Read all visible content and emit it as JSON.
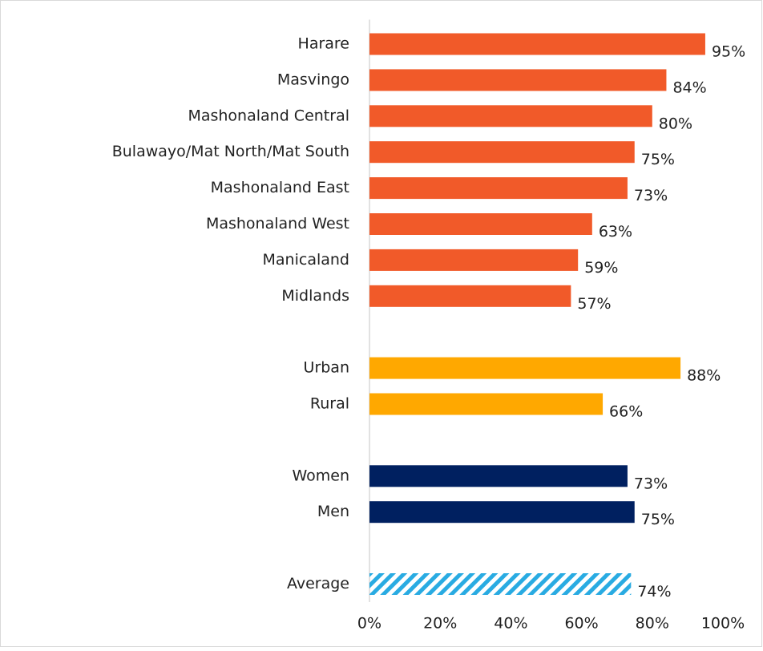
{
  "chart_data": {
    "type": "bar",
    "orientation": "horizontal",
    "categories": [
      "Harare",
      "Masvingo",
      "Mashonaland Central",
      "Bulawayo/Mat North/Mat South",
      "Mashonaland East",
      "Mashonaland West",
      "Manicaland",
      "Midlands",
      null,
      "Urban",
      "Rural",
      null,
      "Women",
      "Men",
      null,
      "Average"
    ],
    "values": [
      95,
      84,
      80,
      75,
      73,
      63,
      59,
      57,
      null,
      88,
      66,
      null,
      73,
      75,
      null,
      74
    ],
    "value_labels": [
      "95%",
      "84%",
      "80%",
      "75%",
      "73%",
      "63%",
      "59%",
      "57%",
      null,
      "88%",
      "66%",
      null,
      "73%",
      "75%",
      null,
      "74%"
    ],
    "colors": [
      "#f15a29",
      "#f15a29",
      "#f15a29",
      "#f15a29",
      "#f15a29",
      "#f15a29",
      "#f15a29",
      "#f15a29",
      null,
      "#ffa800",
      "#ffa800",
      null,
      "#002060",
      "#002060",
      null,
      "#29abe2"
    ],
    "hatched": [
      false,
      false,
      false,
      false,
      false,
      false,
      false,
      false,
      false,
      false,
      false,
      false,
      false,
      false,
      false,
      true
    ],
    "xlim": [
      0,
      100
    ],
    "xticks": [
      {
        "value": 0,
        "label": "0%"
      },
      {
        "value": 20,
        "label": "20%"
      },
      {
        "value": 40,
        "label": "40%"
      },
      {
        "value": 60,
        "label": "60%"
      },
      {
        "value": 80,
        "label": "80%"
      },
      {
        "value": 100,
        "label": "100%"
      }
    ],
    "grid": false
  }
}
